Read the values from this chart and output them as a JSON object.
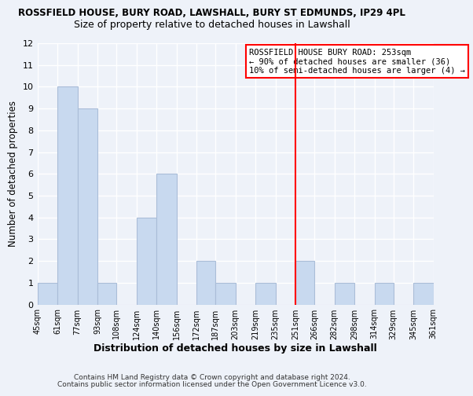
{
  "title": "ROSSFIELD HOUSE, BURY ROAD, LAWSHALL, BURY ST EDMUNDS, IP29 4PL",
  "subtitle": "Size of property relative to detached houses in Lawshall",
  "xlabel": "Distribution of detached houses by size in Lawshall",
  "ylabel": "Number of detached properties",
  "bin_edges": [
    45,
    61,
    77,
    93,
    108,
    124,
    140,
    156,
    172,
    187,
    203,
    219,
    235,
    251,
    266,
    282,
    298,
    314,
    329,
    345,
    361
  ],
  "bar_heights": [
    1,
    10,
    9,
    1,
    0,
    4,
    6,
    0,
    2,
    1,
    0,
    1,
    0,
    2,
    0,
    1,
    0,
    1,
    0,
    1
  ],
  "bar_color": "#c8d9ef",
  "bar_edgecolor": "#aabdd8",
  "red_line_x": 251,
  "ylim": [
    0,
    12
  ],
  "yticks": [
    0,
    1,
    2,
    3,
    4,
    5,
    6,
    7,
    8,
    9,
    10,
    11,
    12
  ],
  "xtick_labels": [
    "45sqm",
    "61sqm",
    "77sqm",
    "93sqm",
    "108sqm",
    "124sqm",
    "140sqm",
    "156sqm",
    "172sqm",
    "187sqm",
    "203sqm",
    "219sqm",
    "235sqm",
    "251sqm",
    "266sqm",
    "282sqm",
    "298sqm",
    "314sqm",
    "329sqm",
    "345sqm",
    "361sqm"
  ],
  "legend_title": "ROSSFIELD HOUSE BURY ROAD: 253sqm",
  "legend_line1": "← 90% of detached houses are smaller (36)",
  "legend_line2": "10% of semi-detached houses are larger (4) →",
  "footer_line1": "Contains HM Land Registry data © Crown copyright and database right 2024.",
  "footer_line2": "Contains public sector information licensed under the Open Government Licence v3.0.",
  "background_color": "#eef2f9"
}
